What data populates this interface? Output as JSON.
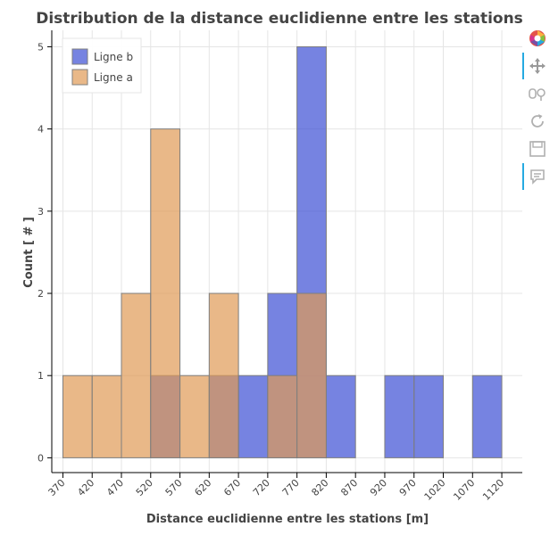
{
  "chart_data": {
    "type": "bar",
    "title": "Distribution de la distance euclidienne entre les stations",
    "xlabel": "Distance euclidienne entre les stations [m]",
    "ylabel": "Count [ # ]",
    "bin_width": 50,
    "x_ticks": [
      "370",
      "420",
      "470",
      "520",
      "570",
      "620",
      "670",
      "720",
      "770",
      "820",
      "870",
      "920",
      "970",
      "1020",
      "1070",
      "1120"
    ],
    "y_ticks": [
      "0",
      "1",
      "2",
      "3",
      "4",
      "5"
    ],
    "xlim": [
      351,
      1155
    ],
    "ylim": [
      -0.18,
      5.2
    ],
    "grid": true,
    "legend_position": "top-left",
    "series": [
      {
        "name": "Ligne b",
        "color": "#3c4ed4",
        "bins": [
          {
            "start": 370,
            "count": 0
          },
          {
            "start": 420,
            "count": 0
          },
          {
            "start": 470,
            "count": 0
          },
          {
            "start": 520,
            "count": 1
          },
          {
            "start": 570,
            "count": 0
          },
          {
            "start": 620,
            "count": 1
          },
          {
            "start": 670,
            "count": 1
          },
          {
            "start": 720,
            "count": 2
          },
          {
            "start": 770,
            "count": 5
          },
          {
            "start": 820,
            "count": 1
          },
          {
            "start": 870,
            "count": 0
          },
          {
            "start": 920,
            "count": 1
          },
          {
            "start": 970,
            "count": 1
          },
          {
            "start": 1020,
            "count": 0
          },
          {
            "start": 1070,
            "count": 1
          }
        ]
      },
      {
        "name": "Ligne a",
        "color": "#e09a56",
        "bins": [
          {
            "start": 370,
            "count": 1
          },
          {
            "start": 420,
            "count": 1
          },
          {
            "start": 470,
            "count": 2
          },
          {
            "start": 520,
            "count": 4
          },
          {
            "start": 570,
            "count": 1
          },
          {
            "start": 620,
            "count": 2
          },
          {
            "start": 670,
            "count": 0
          },
          {
            "start": 720,
            "count": 1
          },
          {
            "start": 770,
            "count": 2
          },
          {
            "start": 820,
            "count": 0
          },
          {
            "start": 870,
            "count": 0
          },
          {
            "start": 920,
            "count": 0
          },
          {
            "start": 970,
            "count": 0
          },
          {
            "start": 1020,
            "count": 0
          },
          {
            "start": 1070,
            "count": 0
          }
        ]
      }
    ]
  },
  "toolbar": {
    "items": [
      {
        "icon": "bokeh-logo-icon"
      },
      {
        "icon": "pan-icon"
      },
      {
        "icon": "box-zoom-icon"
      },
      {
        "icon": "reset-icon"
      },
      {
        "icon": "save-icon"
      },
      {
        "icon": "hover-icon"
      }
    ]
  }
}
